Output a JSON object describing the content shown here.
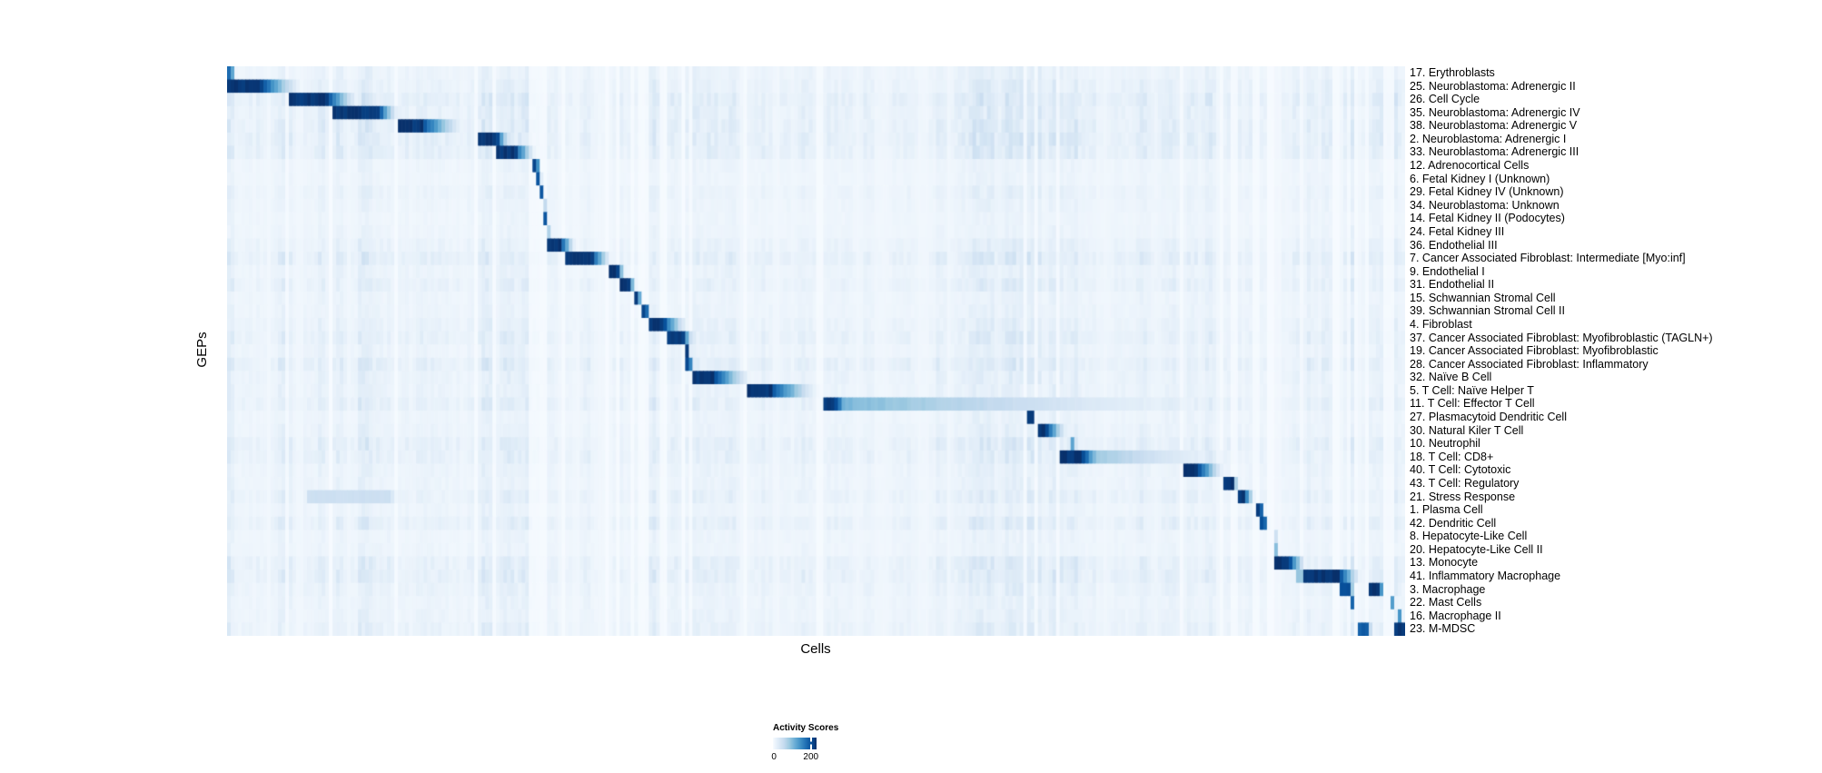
{
  "chart_data": {
    "type": "heatmap",
    "title": "",
    "xlabel": "Cells",
    "ylabel": "GEPs",
    "grid": false,
    "colormap": [
      "#f7fbff",
      "#deebf7",
      "#c6dbef",
      "#9ecae1",
      "#6baed6",
      "#4292c6",
      "#2171b5",
      "#08519c",
      "#08306b"
    ],
    "rows": [
      "17. Erythroblasts",
      "25. Neuroblastoma: Adrenergic II",
      "26. Cell Cycle",
      "35. Neuroblastoma: Adrenergic IV",
      "38. Neuroblastoma: Adrenergic V",
      "2. Neuroblastoma: Adrenergic I",
      "33. Neuroblastoma: Adrenergic III",
      "12. Adrenocortical Cells",
      "6. Fetal Kidney I (Unknown)",
      "29. Fetal Kidney IV (Unknown)",
      "34. Neuroblastoma: Unknown",
      "14. Fetal Kidney II (Podocytes)",
      "24. Fetal Kidney III",
      "36. Endothelial III",
      "7. Cancer Associated Fibroblast: Intermediate [Myo:inf]",
      "9. Endothelial I",
      "31. Endothelial II",
      "15. Schwannian Stromal Cell",
      "39. Schwannian Stromal Cell II",
      "4. Fibroblast",
      "37. Cancer Associated Fibroblast: Myofibroblastic (TAGLN+)",
      "19. Cancer Associated Fibroblast: Myofibroblastic",
      "28. Cancer Associated Fibroblast: Inflammatory",
      "32. Naïve B Cell",
      "5. T Cell: Naïve Helper T",
      "11. T Cell: Effector T Cell",
      "27. Plasmacytoid Dendritic Cell",
      "30. Natural Kiler T Cell",
      "10. Neutrophil",
      "18. T Cell: CD8+",
      "40. T Cell: Cytotoxic",
      "43. T Cell: Regulatory",
      "21. Stress Response",
      "1. Plasma Cell",
      "42. Dendritic Cell",
      "8. Hepatocyte-Like Cell",
      "20. Hepatocyte-Like Cell II",
      "13. Monocyte",
      "41. Inflammatory Macrophage",
      "3. Macrophage",
      "22. Mast Cells",
      "16. Macrophage II",
      "23. M-MDSC"
    ],
    "value_range": [
      0,
      200
    ],
    "blocks_note": "per-row activation blocks as [startFrac, darkEndFrac, fadeEndFrac, peak 0-1] of x-axis",
    "blocks": [
      [
        [
          0.001,
          0.004,
          0.007,
          0.8
        ]
      ],
      [
        [
          0.0,
          0.029,
          0.066,
          1.0
        ]
      ],
      [
        [
          0.052,
          0.085,
          0.114,
          1.0
        ]
      ],
      [
        [
          0.089,
          0.129,
          0.147,
          1.0
        ]
      ],
      [
        [
          0.146,
          0.166,
          0.204,
          1.0
        ]
      ],
      [
        [
          0.2136,
          0.2298,
          0.241,
          1.0
        ]
      ],
      [
        [
          0.2298,
          0.2452,
          0.263,
          1.0
        ]
      ],
      [
        [
          0.2591,
          0.2629,
          0.267,
          0.95
        ]
      ],
      [
        [
          0.2629,
          0.2652,
          0.2675,
          0.9
        ]
      ],
      [
        [
          0.2652,
          0.2675,
          0.269,
          0.85
        ]
      ],
      [
        [
          0.2675,
          0.2691,
          0.271,
          0.7
        ]
      ],
      [
        [
          0.2691,
          0.2707,
          0.2725,
          0.85
        ]
      ],
      [
        [
          0.2707,
          0.2722,
          0.274,
          0.9
        ]
      ],
      [
        [
          0.2714,
          0.2837,
          0.297,
          1.0
        ]
      ],
      [
        [
          0.2868,
          0.31,
          0.3277,
          1.0
        ]
      ],
      [
        [
          0.3254,
          0.3315,
          0.339,
          1.0
        ]
      ],
      [
        [
          0.3346,
          0.3416,
          0.348,
          1.0
        ]
      ],
      [
        [
          0.3454,
          0.3493,
          0.3525,
          0.95
        ]
      ],
      [
        [
          0.3516,
          0.3562,
          0.359,
          0.95
        ]
      ],
      [
        [
          0.357,
          0.3701,
          0.393,
          1.0
        ]
      ],
      [
        [
          0.3724,
          0.3871,
          0.397,
          1.0
        ]
      ],
      [
        [
          0.3886,
          0.3917,
          0.394,
          0.95
        ]
      ],
      [
        [
          0.3894,
          0.3932,
          0.3958,
          0.9
        ]
      ],
      [
        [
          0.3948,
          0.414,
          0.447,
          1.0
        ]
      ],
      [
        [
          0.4418,
          0.462,
          0.505,
          1.0
        ]
      ],
      [
        [
          0.505,
          0.5166,
          0.535,
          1.0
        ],
        [
          0.5166,
          0.5166,
          0.89,
          0.5
        ]
      ],
      [
        [
          0.68,
          0.684,
          0.687,
          1.0
        ]
      ],
      [
        [
          0.6877,
          0.6955,
          0.715,
          1.0
        ]
      ],
      [
        [
          0.7148,
          0.7187,
          0.7215,
          0.55
        ]
      ],
      [
        [
          0.7078,
          0.7263,
          0.75,
          1.0
        ],
        [
          0.7263,
          0.7263,
          0.87,
          0.45
        ]
      ],
      [
        [
          0.812,
          0.825,
          0.848,
          1.0
        ]
      ],
      [
        [
          0.847,
          0.854,
          0.8585,
          1.0
        ]
      ],
      [
        [
          0.857,
          0.864,
          0.873,
          1.0
        ],
        [
          0.067,
          0.139,
          0.146,
          0.22
        ]
      ],
      [
        [
          0.875,
          0.878,
          0.8805,
          0.95
        ]
      ],
      [
        [
          0.8765,
          0.881,
          0.8845,
          0.9
        ]
      ],
      [
        [
          0.8875,
          0.8895,
          0.8915,
          0.5
        ]
      ],
      [
        [
          0.8895,
          0.8915,
          0.8935,
          0.45
        ]
      ],
      [
        [
          0.888,
          0.902,
          0.917,
          1.0
        ]
      ],
      [
        [
          0.915,
          0.945,
          0.964,
          1.0
        ],
        [
          0.908,
          0.915,
          0.916,
          0.4
        ]
      ],
      [
        [
          0.943,
          0.953,
          0.958,
          0.9
        ],
        [
          0.969,
          0.979,
          0.9825,
          1.0
        ]
      ],
      [
        [
          0.9537,
          0.956,
          0.9575,
          0.8
        ],
        [
          0.9865,
          0.9888,
          0.9905,
          0.9
        ]
      ],
      [
        [
          0.993,
          0.996,
          0.9975,
          0.6
        ]
      ],
      [
        [
          0.961,
          0.968,
          0.9725,
          0.85
        ],
        [
          0.99,
          0.9985,
          1.0,
          1.0
        ]
      ]
    ],
    "noise": {
      "seed": 987321,
      "columns": 324,
      "base": 0.025,
      "scale": 0.14,
      "bands": [
        [
          0.04,
          0.145,
          1.3
        ],
        [
          0.14,
          0.24,
          1.2
        ],
        [
          0.213,
          0.243,
          1.7
        ],
        [
          0.63,
          0.705,
          2.0
        ],
        [
          0.705,
          0.77,
          1.5
        ],
        [
          0.83,
          0.885,
          1.3
        ],
        [
          0.905,
          1.0,
          1.7
        ]
      ],
      "row_noise": [
        0.5,
        0.7,
        1.0,
        0.8,
        0.9,
        1.0,
        0.9,
        0.35,
        0.3,
        0.5,
        0.4,
        0.3,
        0.35,
        0.6,
        0.9,
        0.5,
        0.7,
        0.4,
        0.45,
        0.6,
        0.8,
        0.5,
        0.9,
        0.6,
        0.55,
        0.8,
        0.4,
        0.5,
        0.85,
        0.8,
        0.5,
        0.45,
        0.7,
        0.4,
        0.75,
        0.35,
        0.35,
        0.8,
        0.85,
        0.6,
        0.45,
        0.5,
        0.65
      ]
    },
    "legend": {
      "title": "Activity Scores",
      "min_label": "0",
      "max_label": "200",
      "tick_fraction": 0.87
    }
  }
}
